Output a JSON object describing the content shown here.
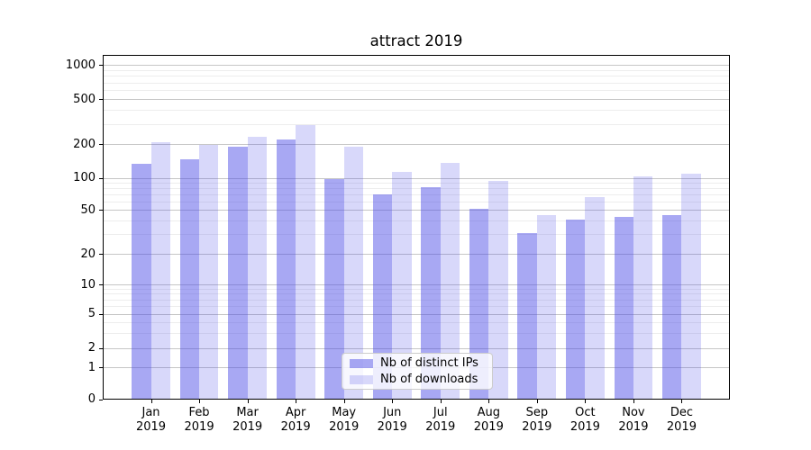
{
  "chart_data": {
    "type": "bar",
    "title": "attract 2019",
    "year_label": "2019",
    "categories": [
      "Jan 2019",
      "Feb 2019",
      "Mar 2019",
      "Apr 2019",
      "May 2019",
      "Jun 2019",
      "Jul 2019",
      "Aug 2019",
      "Sep 2019",
      "Oct 2019",
      "Nov 2019",
      "Dec 2019"
    ],
    "month_labels": [
      "Jan",
      "Feb",
      "Mar",
      "Apr",
      "May",
      "Jun",
      "Jul",
      "Aug",
      "Sep",
      "Oct",
      "Nov",
      "Dec"
    ],
    "series": [
      {
        "name": "Nb of distinct IPs",
        "color": "rgba(70,70,230,0.47)",
        "values": [
          133,
          147,
          190,
          220,
          97,
          70,
          81,
          51,
          31,
          41,
          43,
          45
        ]
      },
      {
        "name": "Nb of downloads",
        "color": "rgba(70,70,230,0.21)",
        "values": [
          207,
          198,
          232,
          292,
          188,
          112,
          136,
          94,
          45,
          66,
          103,
          108
        ]
      }
    ],
    "y_axis": {
      "scale": "symlog",
      "ticks": [
        0,
        1,
        2,
        5,
        10,
        20,
        50,
        100,
        200,
        500,
        1000
      ],
      "range": [
        0,
        1200
      ]
    },
    "legend": {
      "entries": [
        "Nb of distinct IPs",
        "Nb of downloads"
      ],
      "position": "lower center"
    },
    "grid": true,
    "colors": {
      "bar_dark": "rgba(70,70,230,0.47)",
      "bar_light": "rgba(70,70,230,0.21)",
      "grid_major": "#c6c6c6",
      "grid_minor": "#ededed"
    }
  }
}
